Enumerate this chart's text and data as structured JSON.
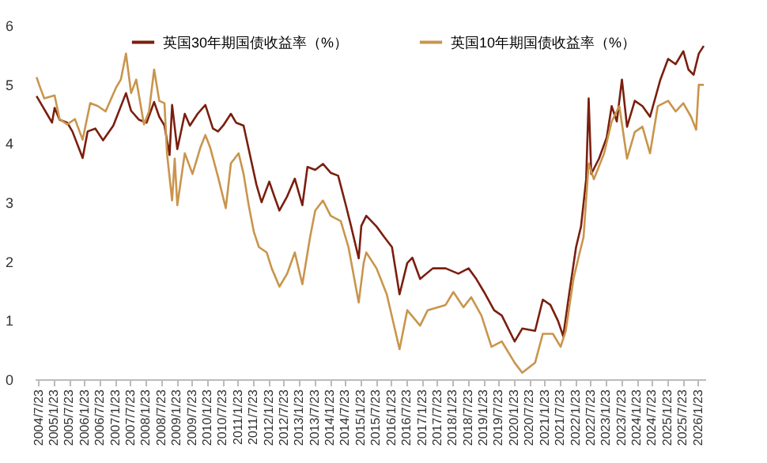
{
  "chart_data": {
    "type": "line",
    "legend": "top",
    "grid": false,
    "line_style": "solid",
    "marker": "none",
    "xlim": [
      "2004-06-10",
      "2026-04-20"
    ],
    "ylim": [
      0,
      6
    ],
    "yticks": [
      0,
      1,
      2,
      3,
      4,
      5,
      6
    ],
    "xticks": [
      {
        "value": "2004-07-23",
        "label": "2004/7/23"
      },
      {
        "value": "2005-01-23",
        "label": "2005/1/23"
      },
      {
        "value": "2005-07-23",
        "label": "2005/7/23"
      },
      {
        "value": "2006-01-23",
        "label": "2006/1/23"
      },
      {
        "value": "2006-07-23",
        "label": "2006/7/23"
      },
      {
        "value": "2007-01-23",
        "label": "2007/1/23"
      },
      {
        "value": "2007-07-23",
        "label": "2007/7/23"
      },
      {
        "value": "2008-01-23",
        "label": "2008/1/23"
      },
      {
        "value": "2008-07-23",
        "label": "2008/7/23"
      },
      {
        "value": "2009-01-23",
        "label": "2009/1/23"
      },
      {
        "value": "2009-07-23",
        "label": "2009/7/23"
      },
      {
        "value": "2010-01-23",
        "label": "2010/1/23"
      },
      {
        "value": "2010-07-23",
        "label": "2010/7/23"
      },
      {
        "value": "2011-01-23",
        "label": "2011/1/23"
      },
      {
        "value": "2011-07-23",
        "label": "2011/7/23"
      },
      {
        "value": "2012-01-23",
        "label": "2012/1/23"
      },
      {
        "value": "2012-07-23",
        "label": "2012/7/23"
      },
      {
        "value": "2013-01-23",
        "label": "2013/1/23"
      },
      {
        "value": "2013-07-23",
        "label": "2013/7/23"
      },
      {
        "value": "2014-01-23",
        "label": "2014/1/23"
      },
      {
        "value": "2014-07-23",
        "label": "2014/7/23"
      },
      {
        "value": "2015-01-23",
        "label": "2015/1/23"
      },
      {
        "value": "2015-07-23",
        "label": "2015/7/23"
      },
      {
        "value": "2016-01-23",
        "label": "2016/1/23"
      },
      {
        "value": "2016-07-23",
        "label": "2016/7/23"
      },
      {
        "value": "2017-01-23",
        "label": "2017/1/23"
      },
      {
        "value": "2017-07-23",
        "label": "2017/7/23"
      },
      {
        "value": "2018-01-23",
        "label": "2018/1/23"
      },
      {
        "value": "2018-07-23",
        "label": "2018/7/23"
      },
      {
        "value": "2019-01-23",
        "label": "2019/1/23"
      },
      {
        "value": "2019-07-23",
        "label": "2019/7/23"
      },
      {
        "value": "2020-01-23",
        "label": "2020/1/23"
      },
      {
        "value": "2020-07-23",
        "label": "2020/7/23"
      },
      {
        "value": "2021-01-23",
        "label": "2021/1/23"
      },
      {
        "value": "2021-07-23",
        "label": "2021/7/23"
      },
      {
        "value": "2022-01-23",
        "label": "2022/1/23"
      },
      {
        "value": "2022-07-23",
        "label": "2022/7/23"
      },
      {
        "value": "2023-01-23",
        "label": "2023/1/23"
      },
      {
        "value": "2023-07-23",
        "label": "2023/7/23"
      },
      {
        "value": "2024-01-23",
        "label": "2024/1/23"
      },
      {
        "value": "2024-07-23",
        "label": "2024/7/23"
      },
      {
        "value": "2025-01-23",
        "label": "2025/1/23"
      },
      {
        "value": "2025-07-23",
        "label": "2025/7/23"
      },
      {
        "value": "2026-01-23",
        "label": "2026/1/23"
      }
    ],
    "series": [
      {
        "name": "英国30年期国债收益率（%）",
        "color": "#7a1f0f",
        "x": [
          "2004-07",
          "2004-09",
          "2004-11",
          "2005-01",
          "2005-02",
          "2005-04",
          "2005-07",
          "2005-09",
          "2006-01",
          "2006-03",
          "2006-06",
          "2006-09",
          "2007-01",
          "2007-06",
          "2007-08",
          "2007-11",
          "2008-02",
          "2008-05",
          "2008-07",
          "2008-09",
          "2008-11",
          "2008-12",
          "2009-02",
          "2009-05",
          "2009-07",
          "2009-10",
          "2010-01",
          "2010-04",
          "2010-06",
          "2010-08",
          "2010-11",
          "2011-01",
          "2011-04",
          "2011-06",
          "2011-09",
          "2011-11",
          "2012-02",
          "2012-04",
          "2012-06",
          "2012-09",
          "2012-12",
          "2013-03",
          "2013-05",
          "2013-08",
          "2013-11",
          "2014-02",
          "2014-05",
          "2014-08",
          "2014-10",
          "2015-01",
          "2015-02",
          "2015-04",
          "2015-08",
          "2015-11",
          "2016-02",
          "2016-05",
          "2016-08",
          "2016-10",
          "2017-01",
          "2017-06",
          "2017-11",
          "2018-04",
          "2018-08",
          "2018-11",
          "2019-02",
          "2019-06",
          "2019-09",
          "2020-02",
          "2020-05",
          "2020-10",
          "2021-01",
          "2021-04",
          "2021-07",
          "2021-09",
          "2021-11",
          "2022-02",
          "2022-04",
          "2022-06",
          "2022-07",
          "2022-08",
          "2022-11",
          "2023-02",
          "2023-04",
          "2023-06",
          "2023-08",
          "2023-10",
          "2024-01",
          "2024-04",
          "2024-07",
          "2024-11",
          "2025-02",
          "2025-05",
          "2025-08",
          "2025-10",
          "2025-12",
          "2026-02",
          "2026-04"
        ],
        "values": [
          4.8,
          4.65,
          4.5,
          4.35,
          4.6,
          4.4,
          4.35,
          4.2,
          3.75,
          4.2,
          4.25,
          4.05,
          4.3,
          4.85,
          4.55,
          4.4,
          4.35,
          4.7,
          4.45,
          4.3,
          3.8,
          4.65,
          3.9,
          4.5,
          4.3,
          4.5,
          4.65,
          4.25,
          4.2,
          4.3,
          4.5,
          4.35,
          4.3,
          3.9,
          3.3,
          3.0,
          3.35,
          3.1,
          2.86,
          3.1,
          3.4,
          2.95,
          3.6,
          3.55,
          3.65,
          3.5,
          3.45,
          2.95,
          2.6,
          2.05,
          2.6,
          2.77,
          2.59,
          2.41,
          2.24,
          1.44,
          1.97,
          2.06,
          1.7,
          1.88,
          1.88,
          1.79,
          1.88,
          1.7,
          1.48,
          1.17,
          1.08,
          0.64,
          0.86,
          0.82,
          1.35,
          1.26,
          0.99,
          0.73,
          1.35,
          2.24,
          2.59,
          3.39,
          4.76,
          3.48,
          3.74,
          4.1,
          4.63,
          4.37,
          5.08,
          4.28,
          4.72,
          4.63,
          4.45,
          5.08,
          5.43,
          5.34,
          5.56,
          5.25,
          5.16,
          5.52,
          5.65
        ]
      },
      {
        "name": "英国10年期国债收益率（%）",
        "color": "#c9954c",
        "x": [
          "2004-07",
          "2004-08",
          "2004-10",
          "2005-02",
          "2005-04",
          "2005-07",
          "2005-10",
          "2006-01",
          "2006-04",
          "2006-07",
          "2006-10",
          "2007-02",
          "2007-04",
          "2007-06",
          "2007-08",
          "2007-10",
          "2008-01",
          "2008-03",
          "2008-05",
          "2008-07",
          "2008-09",
          "2008-10",
          "2008-12",
          "2009-01",
          "2009-02",
          "2009-05",
          "2009-08",
          "2009-11",
          "2010-01",
          "2010-03",
          "2010-06",
          "2010-09",
          "2010-11",
          "2011-02",
          "2011-04",
          "2011-06",
          "2011-08",
          "2011-10",
          "2012-01",
          "2012-03",
          "2012-06",
          "2012-09",
          "2012-12",
          "2013-03",
          "2013-06",
          "2013-08",
          "2013-11",
          "2014-02",
          "2014-06",
          "2014-09",
          "2015-01",
          "2015-03",
          "2015-04",
          "2015-08",
          "2015-12",
          "2016-05",
          "2016-08",
          "2017-01",
          "2017-04",
          "2017-11",
          "2018-02",
          "2018-06",
          "2018-09",
          "2019-01",
          "2019-05",
          "2019-09",
          "2020-02",
          "2020-05",
          "2020-10",
          "2021-01",
          "2021-05",
          "2021-08",
          "2021-10",
          "2022-01",
          "2022-03",
          "2022-05",
          "2022-07",
          "2022-09",
          "2023-01",
          "2023-04",
          "2023-07",
          "2023-10",
          "2024-01",
          "2024-04",
          "2024-07",
          "2024-10",
          "2025-02",
          "2025-05",
          "2025-08",
          "2025-11",
          "2026-01",
          "2026-02",
          "2026-04"
        ],
        "values": [
          5.12,
          4.99,
          4.76,
          4.81,
          4.41,
          4.32,
          4.41,
          4.06,
          4.68,
          4.63,
          4.54,
          4.94,
          5.08,
          5.52,
          4.85,
          5.08,
          4.32,
          4.54,
          5.25,
          4.72,
          4.68,
          3.83,
          3.03,
          3.74,
          2.95,
          3.83,
          3.48,
          3.92,
          4.14,
          3.92,
          3.43,
          2.9,
          3.66,
          3.83,
          3.48,
          2.95,
          2.5,
          2.24,
          2.15,
          1.88,
          1.57,
          1.79,
          2.15,
          1.61,
          2.41,
          2.86,
          3.03,
          2.77,
          2.68,
          2.24,
          1.3,
          1.97,
          2.15,
          1.88,
          1.44,
          0.51,
          1.17,
          0.91,
          1.17,
          1.26,
          1.48,
          1.22,
          1.39,
          1.08,
          0.55,
          0.64,
          0.28,
          0.11,
          0.28,
          0.77,
          0.77,
          0.55,
          0.82,
          1.7,
          2.06,
          2.41,
          3.66,
          3.39,
          3.83,
          4.37,
          4.63,
          3.74,
          4.19,
          4.28,
          3.83,
          4.63,
          4.72,
          4.54,
          4.68,
          4.45,
          4.23,
          4.99,
          4.99
        ]
      }
    ]
  }
}
